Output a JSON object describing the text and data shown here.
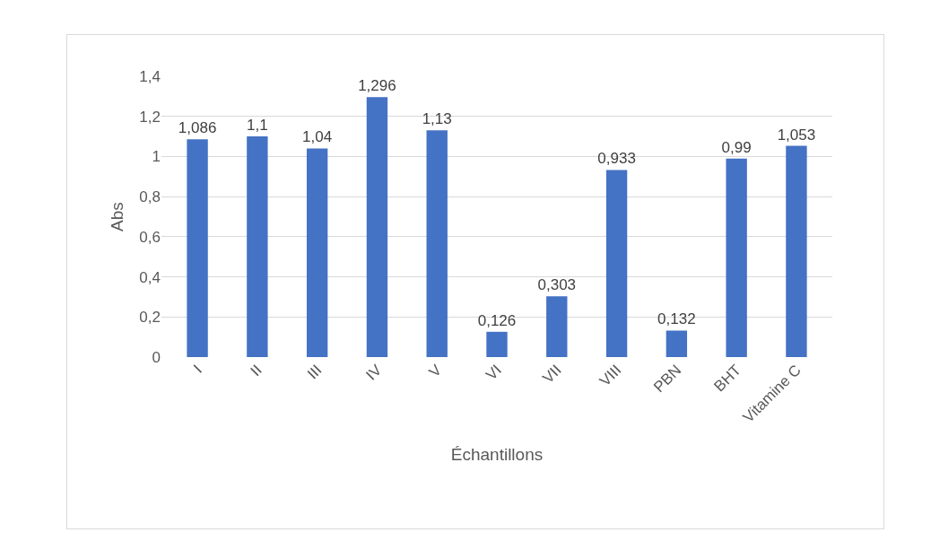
{
  "chart_data": {
    "type": "bar",
    "xlabel": "Échantillons",
    "ylabel": "Abs",
    "categories": [
      "I",
      "II",
      "III",
      "IV",
      "V",
      "VI",
      "VII",
      "VIII",
      "PBN",
      "BHT",
      "Vitamine C"
    ],
    "values": [
      1.086,
      1.1,
      1.04,
      1.296,
      1.13,
      0.126,
      0.303,
      0.933,
      0.132,
      0.99,
      1.053
    ],
    "value_labels": [
      "1,086",
      "1,1",
      "1,04",
      "1,296",
      "1,13",
      "0,126",
      "0,303",
      "0,933",
      "0,132",
      "0,99",
      "1,053"
    ],
    "color": "#4472c4",
    "ylim": [
      0,
      1.4
    ],
    "yticks": [
      {
        "value": 0,
        "label": "0"
      },
      {
        "value": 0.2,
        "label": "0,2"
      },
      {
        "value": 0.4,
        "label": "0,4"
      },
      {
        "value": 0.6,
        "label": "0,6"
      },
      {
        "value": 0.8,
        "label": "0,8"
      },
      {
        "value": 1,
        "label": "1"
      },
      {
        "value": 1.2,
        "label": "1,2"
      },
      {
        "value": 1.4,
        "label": "1,4"
      }
    ],
    "grid": "y"
  }
}
